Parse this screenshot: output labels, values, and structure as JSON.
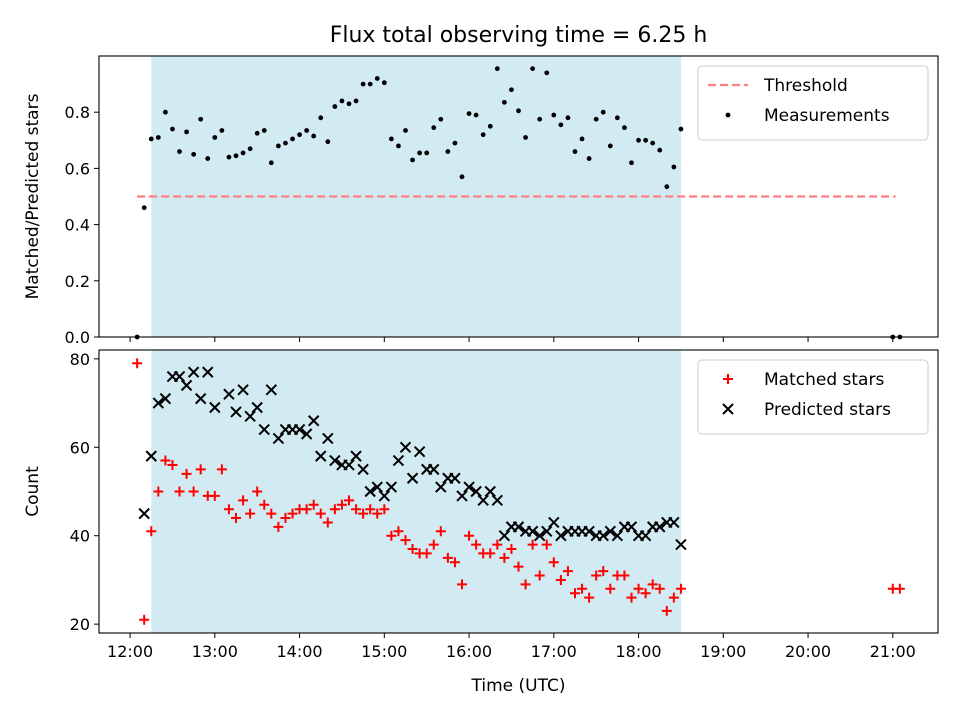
{
  "chart_data": [
    {
      "type": "scatter",
      "title": "Flux total observing time = 6.25 h",
      "ylabel": "Matched/Predicted stars",
      "xlabel": "",
      "ylim": [
        0,
        1.0
      ],
      "yticks": [
        0.0,
        0.2,
        0.4,
        0.6,
        0.8
      ],
      "ytick_labels": [
        "0.0",
        "0.2",
        "0.4",
        "0.6",
        "0.8"
      ],
      "xlim": [
        "11:38",
        "21:32"
      ],
      "xticks": [
        "12:00",
        "13:00",
        "14:00",
        "15:00",
        "16:00",
        "17:00",
        "18:00",
        "19:00",
        "20:00",
        "21:00"
      ],
      "shaded_span": [
        "12:15",
        "18:30"
      ],
      "shade_color": "#add8e6",
      "legend": {
        "placement": "top-right",
        "entries": [
          "Threshold",
          "Measurements"
        ]
      },
      "threshold": {
        "name": "Threshold",
        "y": 0.5,
        "x_range": [
          "12:05",
          "21:02"
        ],
        "color": "#ff7f7f"
      },
      "series": [
        {
          "name": "Measurements",
          "color": "#000000",
          "points": [
            [
              "12:05",
              0.0
            ],
            [
              "12:10",
              0.46
            ],
            [
              "12:15",
              0.705
            ],
            [
              "12:20",
              0.71
            ],
            [
              "12:25",
              0.8
            ],
            [
              "12:30",
              0.74
            ],
            [
              "12:35",
              0.66
            ],
            [
              "12:40",
              0.73
            ],
            [
              "12:45",
              0.65
            ],
            [
              "12:50",
              0.775
            ],
            [
              "12:55",
              0.635
            ],
            [
              "13:00",
              0.71
            ],
            [
              "13:05",
              0.735
            ],
            [
              "13:10",
              0.64
            ],
            [
              "13:15",
              0.645
            ],
            [
              "13:20",
              0.655
            ],
            [
              "13:25",
              0.67
            ],
            [
              "13:30",
              0.725
            ],
            [
              "13:35",
              0.735
            ],
            [
              "13:40",
              0.62
            ],
            [
              "13:45",
              0.68
            ],
            [
              "13:50",
              0.69
            ],
            [
              "13:55",
              0.705
            ],
            [
              "14:00",
              0.72
            ],
            [
              "14:05",
              0.735
            ],
            [
              "14:10",
              0.715
            ],
            [
              "14:15",
              0.78
            ],
            [
              "14:20",
              0.695
            ],
            [
              "14:25",
              0.82
            ],
            [
              "14:30",
              0.84
            ],
            [
              "14:35",
              0.83
            ],
            [
              "14:40",
              0.84
            ],
            [
              "14:45",
              0.9
            ],
            [
              "14:50",
              0.9
            ],
            [
              "14:55",
              0.92
            ],
            [
              "15:00",
              0.905
            ],
            [
              "15:05",
              0.705
            ],
            [
              "15:10",
              0.68
            ],
            [
              "15:15",
              0.735
            ],
            [
              "15:20",
              0.63
            ],
            [
              "15:25",
              0.655
            ],
            [
              "15:30",
              0.655
            ],
            [
              "15:35",
              0.745
            ],
            [
              "15:40",
              0.775
            ],
            [
              "15:45",
              0.66
            ],
            [
              "15:50",
              0.69
            ],
            [
              "15:55",
              0.57
            ],
            [
              "16:00",
              0.795
            ],
            [
              "16:05",
              0.79
            ],
            [
              "16:10",
              0.72
            ],
            [
              "16:15",
              0.75
            ],
            [
              "16:20",
              0.955
            ],
            [
              "16:25",
              0.835
            ],
            [
              "16:30",
              0.88
            ],
            [
              "16:35",
              0.805
            ],
            [
              "16:40",
              0.71
            ],
            [
              "16:45",
              0.955
            ],
            [
              "16:50",
              0.775
            ],
            [
              "16:55",
              0.94
            ],
            [
              "17:00",
              0.79
            ],
            [
              "17:05",
              0.755
            ],
            [
              "17:10",
              0.78
            ],
            [
              "17:15",
              0.66
            ],
            [
              "17:20",
              0.705
            ],
            [
              "17:25",
              0.635
            ],
            [
              "17:30",
              0.775
            ],
            [
              "17:35",
              0.8
            ],
            [
              "17:40",
              0.68
            ],
            [
              "17:45",
              0.78
            ],
            [
              "17:50",
              0.745
            ],
            [
              "17:55",
              0.62
            ],
            [
              "18:00",
              0.7
            ],
            [
              "18:05",
              0.7
            ],
            [
              "18:10",
              0.69
            ],
            [
              "18:15",
              0.665
            ],
            [
              "18:20",
              0.535
            ],
            [
              "18:25",
              0.605
            ],
            [
              "18:30",
              0.74
            ],
            [
              "21:00",
              0.0
            ],
            [
              "21:05",
              0.0
            ]
          ]
        }
      ]
    },
    {
      "type": "scatter",
      "title": "",
      "xlabel": "Time (UTC)",
      "ylabel": "Count",
      "ylim": [
        18,
        82
      ],
      "yticks": [
        20,
        40,
        60,
        80
      ],
      "ytick_labels": [
        "20",
        "40",
        "60",
        "80"
      ],
      "xlim": [
        "11:38",
        "21:32"
      ],
      "xticks": [
        "12:00",
        "13:00",
        "14:00",
        "15:00",
        "16:00",
        "17:00",
        "18:00",
        "19:00",
        "20:00",
        "21:00"
      ],
      "xtick_labels": [
        "12:00",
        "13:00",
        "14:00",
        "15:00",
        "16:00",
        "17:00",
        "18:00",
        "19:00",
        "20:00",
        "21:00"
      ],
      "shaded_span": [
        "12:15",
        "18:30"
      ],
      "shade_color": "#add8e6",
      "legend": {
        "placement": "top-right",
        "entries": [
          "Matched stars",
          "Predicted stars"
        ]
      },
      "series": [
        {
          "name": "Matched stars",
          "marker": "plus",
          "color": "#ff0000",
          "points": [
            [
              "12:05",
              79
            ],
            [
              "12:10",
              21
            ],
            [
              "12:15",
              41
            ],
            [
              "12:20",
              50
            ],
            [
              "12:25",
              57
            ],
            [
              "12:30",
              56
            ],
            [
              "12:35",
              50
            ],
            [
              "12:40",
              54
            ],
            [
              "12:45",
              50
            ],
            [
              "12:50",
              55
            ],
            [
              "12:55",
              49
            ],
            [
              "13:00",
              49
            ],
            [
              "13:05",
              55
            ],
            [
              "13:10",
              46
            ],
            [
              "13:15",
              44
            ],
            [
              "13:20",
              48
            ],
            [
              "13:25",
              45
            ],
            [
              "13:30",
              50
            ],
            [
              "13:35",
              47
            ],
            [
              "13:40",
              45
            ],
            [
              "13:45",
              42
            ],
            [
              "13:50",
              44
            ],
            [
              "13:55",
              45
            ],
            [
              "14:00",
              46
            ],
            [
              "14:05",
              46
            ],
            [
              "14:10",
              47
            ],
            [
              "14:15",
              45
            ],
            [
              "14:20",
              43
            ],
            [
              "14:25",
              46
            ],
            [
              "14:30",
              47
            ],
            [
              "14:35",
              48
            ],
            [
              "14:40",
              46
            ],
            [
              "14:45",
              45
            ],
            [
              "14:50",
              46
            ],
            [
              "14:55",
              45
            ],
            [
              "15:00",
              46
            ],
            [
              "15:05",
              40
            ],
            [
              "15:10",
              41
            ],
            [
              "15:15",
              39
            ],
            [
              "15:20",
              37
            ],
            [
              "15:25",
              36
            ],
            [
              "15:30",
              36
            ],
            [
              "15:35",
              38
            ],
            [
              "15:40",
              41
            ],
            [
              "15:45",
              35
            ],
            [
              "15:50",
              34
            ],
            [
              "15:55",
              29
            ],
            [
              "16:00",
              40
            ],
            [
              "16:05",
              38
            ],
            [
              "16:10",
              36
            ],
            [
              "16:15",
              36
            ],
            [
              "16:20",
              38
            ],
            [
              "16:25",
              35
            ],
            [
              "16:30",
              37
            ],
            [
              "16:35",
              33
            ],
            [
              "16:40",
              29
            ],
            [
              "16:45",
              38
            ],
            [
              "16:50",
              31
            ],
            [
              "16:55",
              38
            ],
            [
              "17:00",
              34
            ],
            [
              "17:05",
              30
            ],
            [
              "17:10",
              32
            ],
            [
              "17:15",
              27
            ],
            [
              "17:20",
              28
            ],
            [
              "17:25",
              26
            ],
            [
              "17:30",
              31
            ],
            [
              "17:35",
              32
            ],
            [
              "17:40",
              28
            ],
            [
              "17:45",
              31
            ],
            [
              "17:50",
              31
            ],
            [
              "17:55",
              26
            ],
            [
              "18:00",
              28
            ],
            [
              "18:05",
              27
            ],
            [
              "18:10",
              29
            ],
            [
              "18:15",
              28
            ],
            [
              "18:20",
              23
            ],
            [
              "18:25",
              26
            ],
            [
              "18:30",
              28
            ],
            [
              "21:00",
              28
            ],
            [
              "21:05",
              28
            ]
          ]
        },
        {
          "name": "Predicted stars",
          "marker": "x",
          "color": "#000000",
          "points": [
            [
              "12:10",
              45
            ],
            [
              "12:15",
              58
            ],
            [
              "12:20",
              70
            ],
            [
              "12:25",
              71
            ],
            [
              "12:30",
              76
            ],
            [
              "12:35",
              76
            ],
            [
              "12:40",
              74
            ],
            [
              "12:45",
              77
            ],
            [
              "12:50",
              71
            ],
            [
              "12:55",
              77
            ],
            [
              "13:00",
              69
            ],
            [
              "13:10",
              72
            ],
            [
              "13:15",
              68
            ],
            [
              "13:20",
              73
            ],
            [
              "13:25",
              67
            ],
            [
              "13:30",
              69
            ],
            [
              "13:35",
              64
            ],
            [
              "13:40",
              73
            ],
            [
              "13:45",
              62
            ],
            [
              "13:50",
              64
            ],
            [
              "13:55",
              64
            ],
            [
              "14:00",
              64
            ],
            [
              "14:05",
              63
            ],
            [
              "14:10",
              66
            ],
            [
              "14:15",
              58
            ],
            [
              "14:20",
              62
            ],
            [
              "14:25",
              57
            ],
            [
              "14:30",
              56
            ],
            [
              "14:35",
              56
            ],
            [
              "14:40",
              58
            ],
            [
              "14:45",
              55
            ],
            [
              "14:50",
              50
            ],
            [
              "14:55",
              51
            ],
            [
              "15:00",
              49
            ],
            [
              "15:05",
              51
            ],
            [
              "15:10",
              57
            ],
            [
              "15:15",
              60
            ],
            [
              "15:20",
              53
            ],
            [
              "15:25",
              59
            ],
            [
              "15:30",
              55
            ],
            [
              "15:35",
              55
            ],
            [
              "15:40",
              51
            ],
            [
              "15:45",
              53
            ],
            [
              "15:50",
              53
            ],
            [
              "15:55",
              49
            ],
            [
              "16:00",
              51
            ],
            [
              "16:05",
              50
            ],
            [
              "16:10",
              48
            ],
            [
              "16:15",
              50
            ],
            [
              "16:20",
              48
            ],
            [
              "16:25",
              40
            ],
            [
              "16:30",
              42
            ],
            [
              "16:35",
              42
            ],
            [
              "16:40",
              41
            ],
            [
              "16:45",
              41
            ],
            [
              "16:50",
              40
            ],
            [
              "16:55",
              41
            ],
            [
              "17:00",
              43
            ],
            [
              "17:05",
              40
            ],
            [
              "17:10",
              41
            ],
            [
              "17:15",
              41
            ],
            [
              "17:20",
              41
            ],
            [
              "17:25",
              41
            ],
            [
              "17:30",
              40
            ],
            [
              "17:35",
              40
            ],
            [
              "17:40",
              41
            ],
            [
              "17:45",
              40
            ],
            [
              "17:50",
              42
            ],
            [
              "17:55",
              42
            ],
            [
              "18:00",
              40
            ],
            [
              "18:05",
              40
            ],
            [
              "18:10",
              42
            ],
            [
              "18:15",
              42
            ],
            [
              "18:20",
              43
            ],
            [
              "18:25",
              43
            ],
            [
              "18:30",
              38
            ]
          ]
        }
      ]
    }
  ]
}
